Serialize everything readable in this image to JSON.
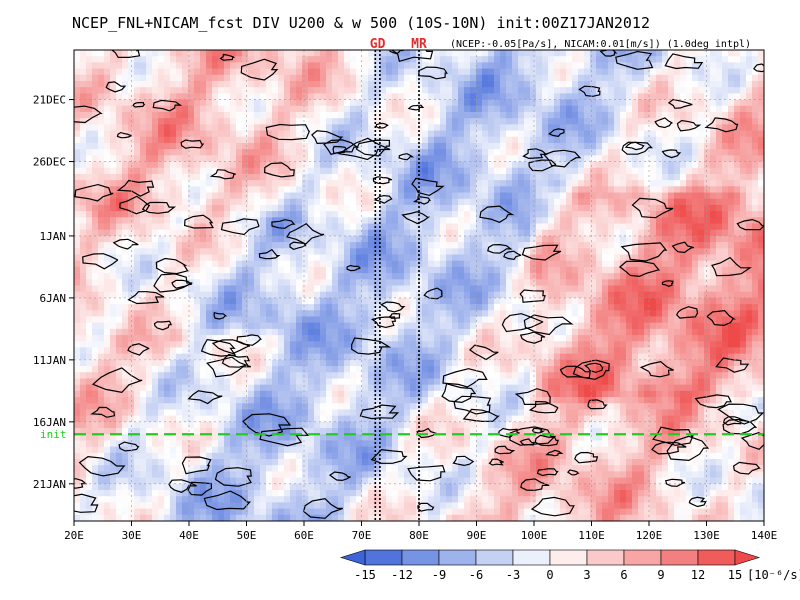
{
  "title": "NCEP_FNL+NICAM_fcst DIV U200 & w 500 (10S-10N) init:00Z17JAN2012",
  "subtitle": "(NCEP:-0.05[Pa/s], NICAM:0.01[m/s]) (1.0deg intpl)",
  "colors": {
    "negative": "#3d64d8",
    "neutral": "#ffffff",
    "positive": "#ee4a4a",
    "init_line": "#22cc22",
    "marker_label": "#e03030"
  },
  "chart_data": {
    "type": "heatmap",
    "xlabel": "",
    "ylabel": "",
    "xlim": [
      20,
      140
    ],
    "ylim_dates": [
      "2011-12-17",
      "2012-01-24"
    ],
    "x_ticks": [
      20,
      30,
      40,
      50,
      60,
      70,
      80,
      90,
      100,
      110,
      120,
      130,
      140
    ],
    "x_tick_labels": [
      "20E",
      "30E",
      "40E",
      "50E",
      "60E",
      "70E",
      "80E",
      "90E",
      "100E",
      "110E",
      "120E",
      "130E",
      "140E"
    ],
    "y_ticks": [
      "2011-12-21",
      "2011-12-26",
      "2012-01-01",
      "2012-01-06",
      "2012-01-11",
      "2012-01-16",
      "2012-01-21"
    ],
    "y_tick_labels": [
      "21DEC",
      "26DEC",
      "1JAN",
      "6JAN",
      "11JAN",
      "16JAN",
      "21JAN"
    ],
    "init": {
      "date": "2012-01-17",
      "label": "init"
    },
    "vertical_markers": [
      {
        "label": "GD",
        "lons": [
          72.4,
          73.2
        ]
      },
      {
        "label": "MR",
        "lons": [
          80
        ]
      }
    ],
    "colorbar": {
      "levels": [
        -15,
        -12,
        -9,
        -6,
        -3,
        0,
        3,
        6,
        9,
        12,
        15
      ],
      "tick_labels": [
        "-15",
        "-12",
        "-9",
        "-6",
        "-3",
        "0",
        "3",
        "6",
        "9",
        "12",
        "15"
      ],
      "unit": "[10⁻⁶/s]",
      "extend": "both"
    },
    "grid": true
  }
}
